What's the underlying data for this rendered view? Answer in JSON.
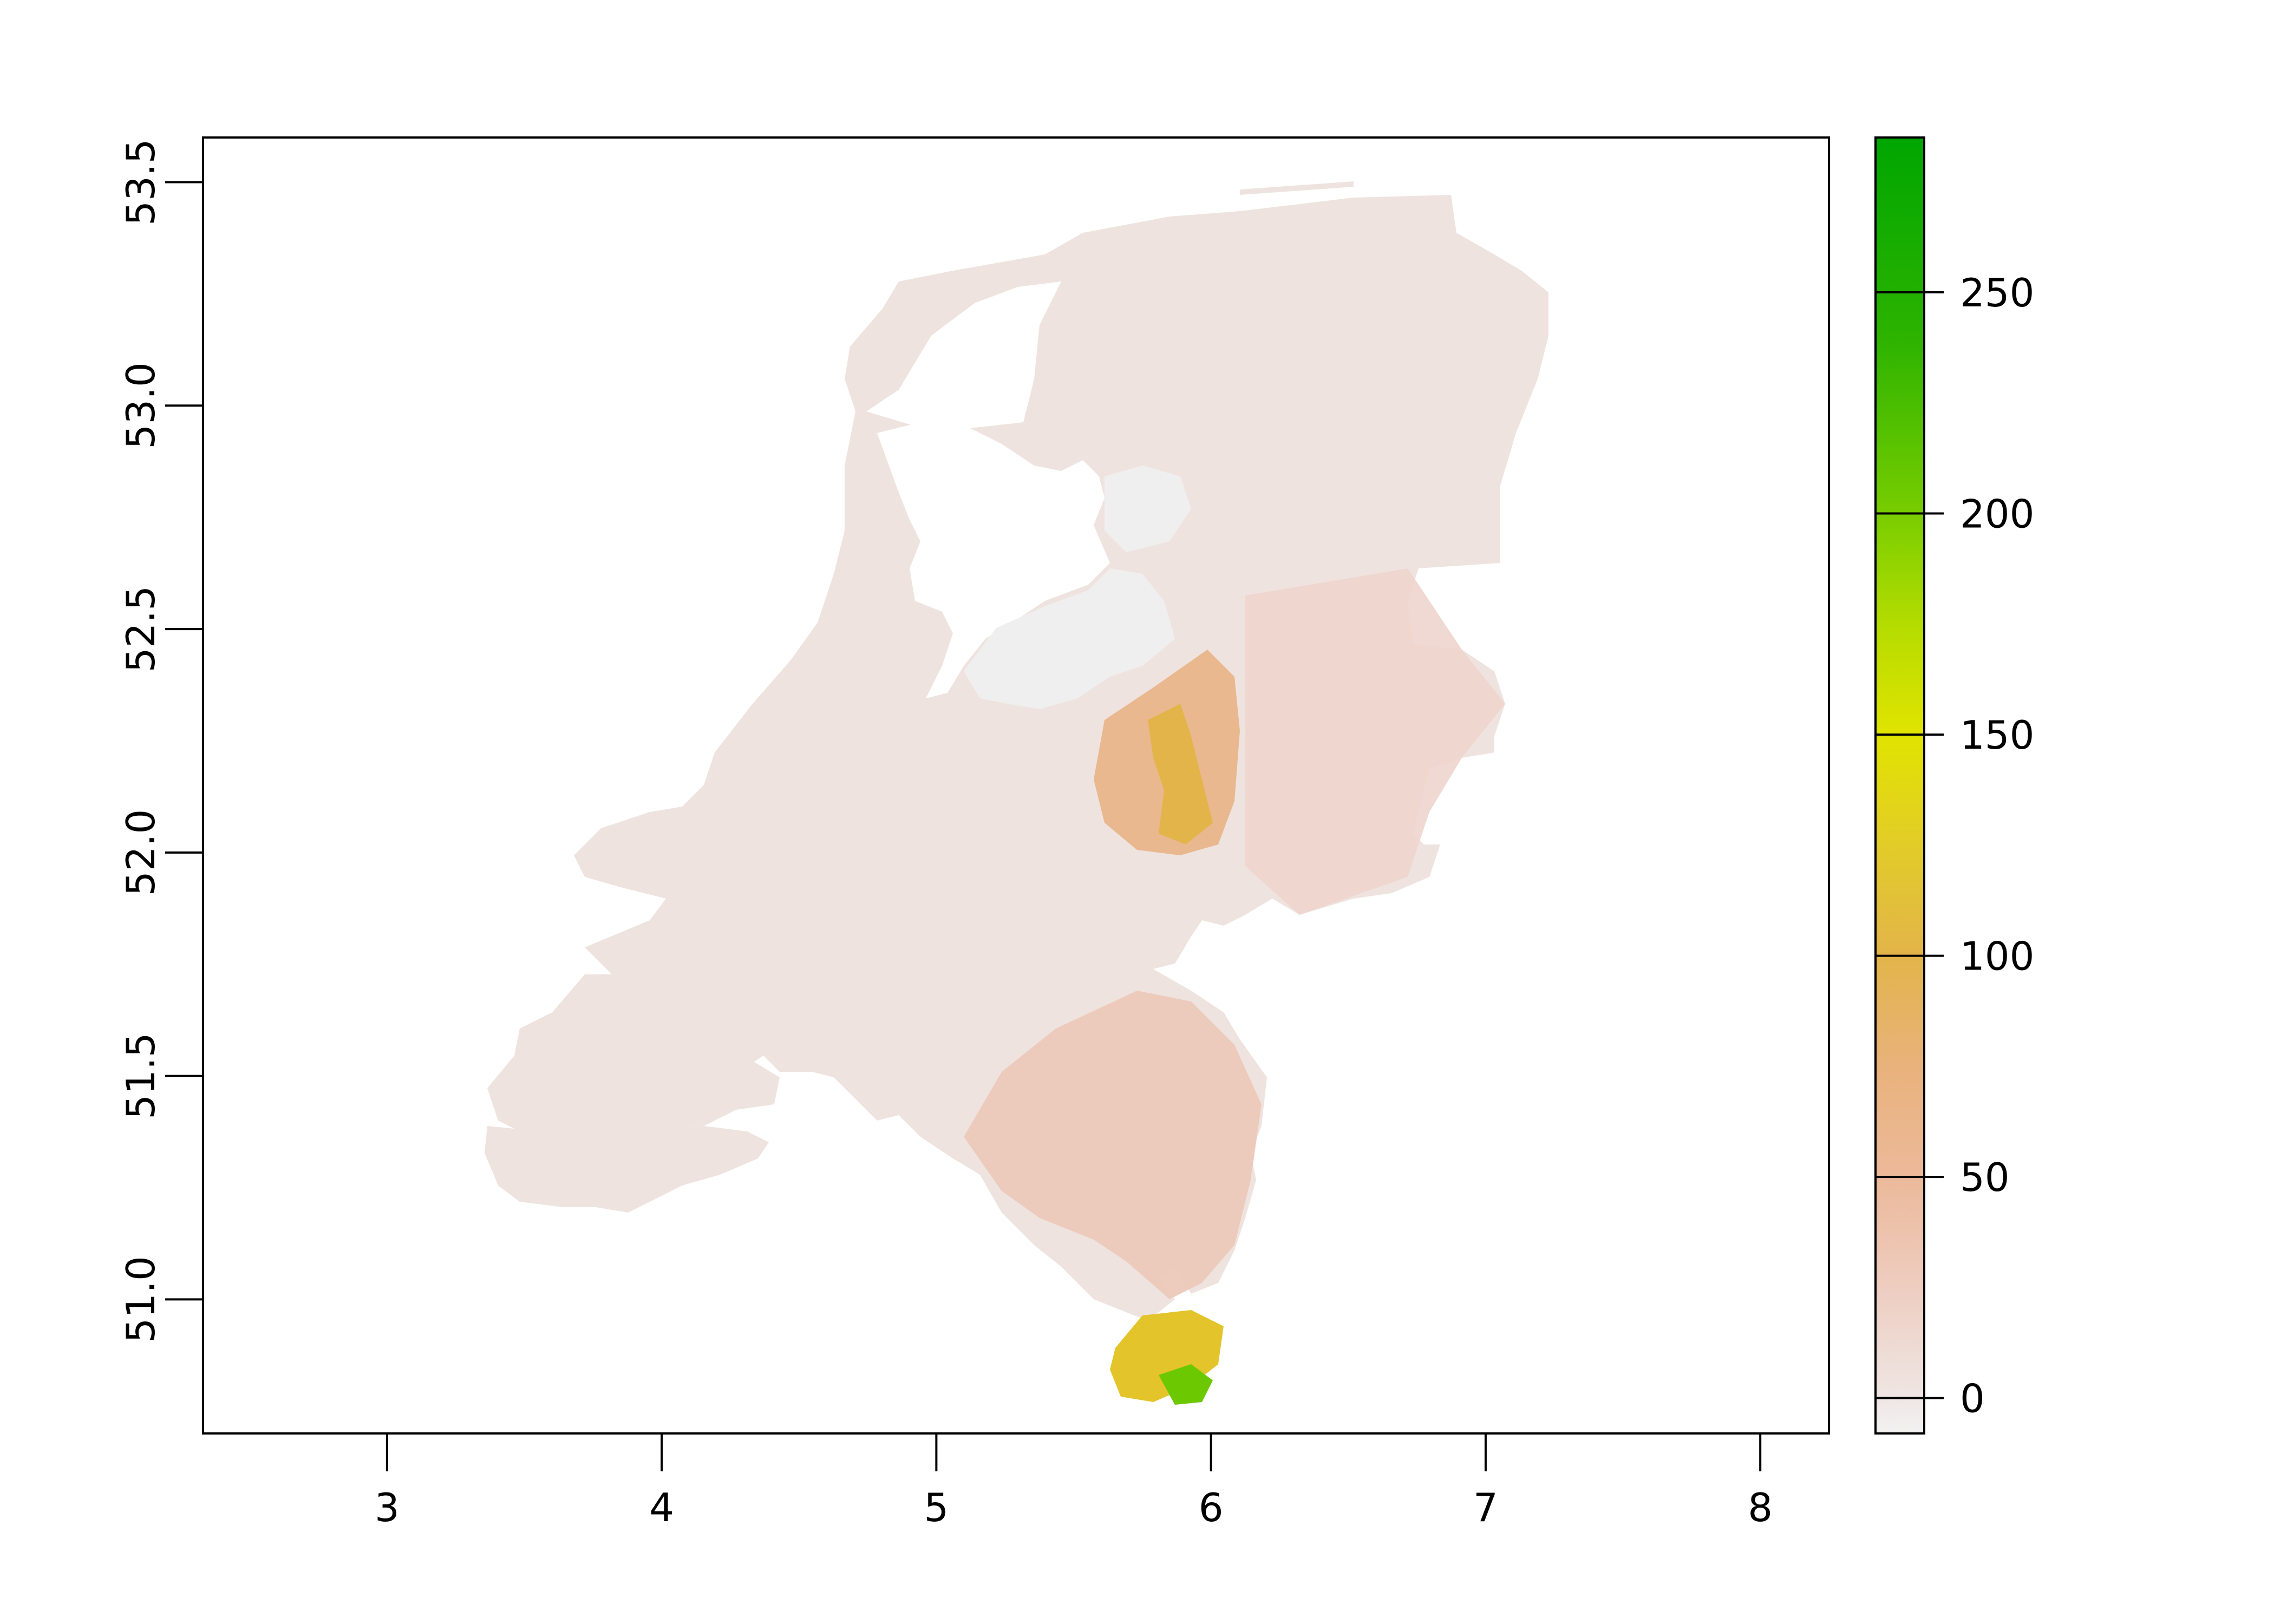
{
  "map": {
    "x_ticks": [
      "3",
      "4",
      "5",
      "6",
      "7",
      "8"
    ],
    "y_ticks": [
      "51.0",
      "51.5",
      "52.0",
      "52.5",
      "53.0",
      "53.5"
    ],
    "xlim": [
      2.33,
      8.25
    ],
    "ylim": [
      50.7,
      53.6
    ],
    "land_base_color": "#efe2df"
  },
  "legend": {
    "tick_labels": [
      "0",
      "50",
      "100",
      "150",
      "200",
      "250"
    ],
    "tick_values": [
      0,
      50,
      100,
      150,
      200,
      250
    ],
    "range": [
      -8,
      285
    ],
    "gradient_stops": [
      {
        "value": -8,
        "color": "#f2f2f2"
      },
      {
        "value": 0,
        "color": "#efe6e4"
      },
      {
        "value": 25,
        "color": "#eecdc0"
      },
      {
        "value": 50,
        "color": "#ecb99a"
      },
      {
        "value": 75,
        "color": "#e9b27c"
      },
      {
        "value": 100,
        "color": "#e3b44a"
      },
      {
        "value": 125,
        "color": "#e2cc28"
      },
      {
        "value": 150,
        "color": "#e1e400"
      },
      {
        "value": 175,
        "color": "#b4dc00"
      },
      {
        "value": 200,
        "color": "#78cd00"
      },
      {
        "value": 240,
        "color": "#2cb300"
      },
      {
        "value": 285,
        "color": "#00a600"
      }
    ]
  }
}
